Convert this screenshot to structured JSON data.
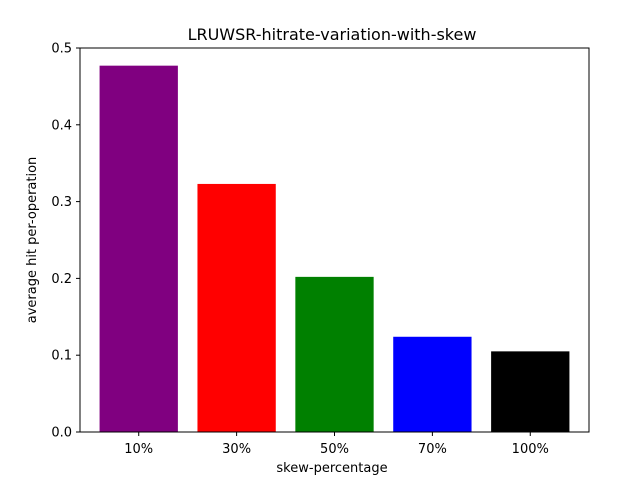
{
  "chart_data": {
    "type": "bar",
    "title": "LRUWSR-hitrate-variation-with-skew",
    "xlabel": "skew-percentage",
    "ylabel": "average hit per-operation",
    "categories": [
      "10%",
      "30%",
      "50%",
      "70%",
      "100%"
    ],
    "values": [
      0.477,
      0.323,
      0.202,
      0.124,
      0.105
    ],
    "colors": [
      "#800080",
      "#ff0000",
      "#008000",
      "#0000ff",
      "#000000"
    ],
    "ylim": [
      0,
      0.5
    ],
    "yticks": [
      0.0,
      0.1,
      0.2,
      0.3,
      0.4,
      0.5
    ],
    "ytick_labels": [
      "0.0",
      "0.1",
      "0.2",
      "0.3",
      "0.4",
      "0.5"
    ],
    "grid": false,
    "legend": false
  }
}
